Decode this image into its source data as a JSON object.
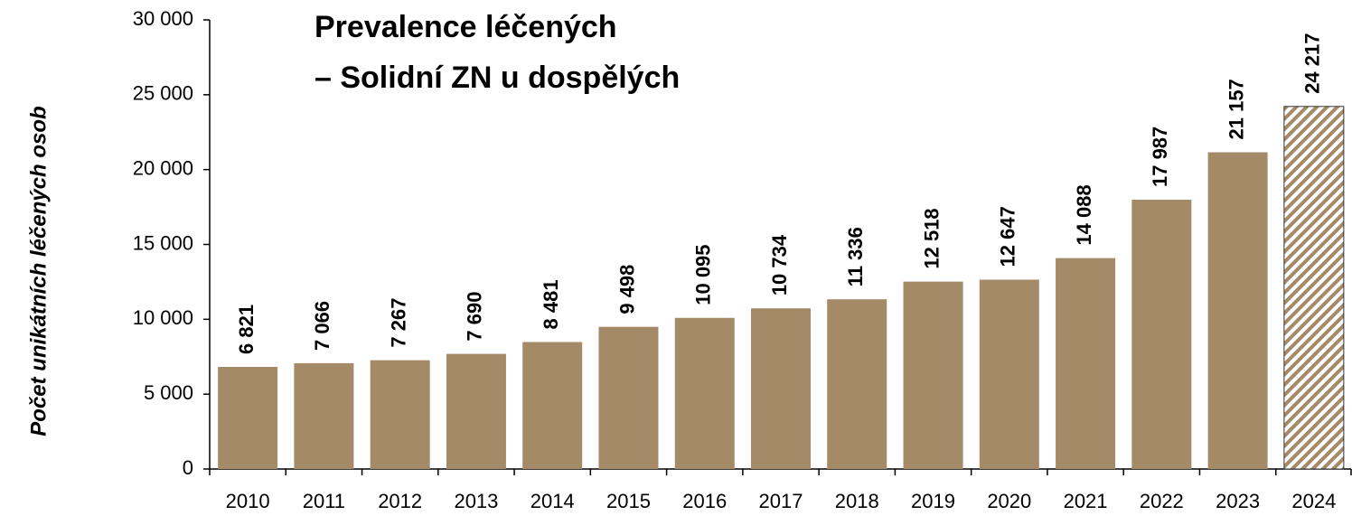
{
  "chart_data": {
    "type": "bar",
    "title": [
      "Prevalence léčených",
      "– Solidní ZN u dospělých"
    ],
    "y_label": "Počet unikátních léčených osob",
    "categories": [
      "2010",
      "2011",
      "2012",
      "2013",
      "2014",
      "2015",
      "2016",
      "2017",
      "2018",
      "2019",
      "2020",
      "2021",
      "2022",
      "2023",
      "2024"
    ],
    "values": [
      6821,
      7066,
      7267,
      7690,
      8481,
      9498,
      10095,
      10734,
      11336,
      12518,
      12647,
      14088,
      17987,
      21157,
      24217
    ],
    "value_labels": [
      "6 821",
      "7 066",
      "7 267",
      "7 690",
      "8 481",
      "9 498",
      "10 095",
      "10 734",
      "11 336",
      "12 518",
      "12 647",
      "14 088",
      "17 987",
      "21 157",
      "24 217"
    ],
    "color": "#a58a68",
    "hatched_index": 14,
    "ylim": [
      0,
      30000
    ],
    "yticks": [
      0,
      {
        "value": 5000,
        "label": "5 000"
      },
      {
        "value": 10000,
        "label": "10 000"
      },
      {
        "value": 15000,
        "label": "15 000"
      },
      {
        "value": 20000,
        "label": "20 000"
      },
      {
        "value": 25000,
        "label": "25 000"
      },
      {
        "value": 30000,
        "label": "30 000"
      }
    ]
  }
}
